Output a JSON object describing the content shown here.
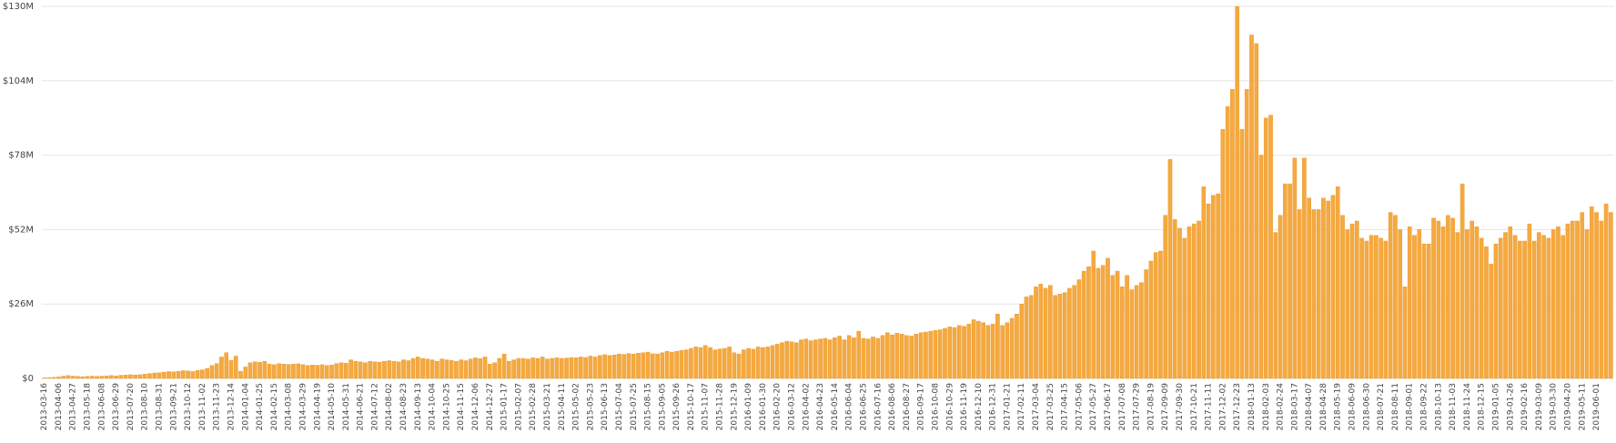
{
  "chart_data": {
    "type": "bar",
    "categories": [
      "2013-03-16",
      null,
      null,
      "2013-04-06",
      null,
      null,
      "2013-04-27",
      null,
      null,
      "2013-05-18",
      null,
      null,
      "2013-06-08",
      null,
      null,
      "2013-06-29",
      null,
      null,
      "2013-07-20",
      null,
      null,
      "2013-08-10",
      null,
      null,
      "2013-08-31",
      null,
      null,
      "2013-09-21",
      null,
      null,
      "2013-10-12",
      null,
      null,
      "2013-11-02",
      null,
      null,
      "2013-11-23",
      null,
      null,
      "2013-12-14",
      null,
      null,
      "2014-01-04",
      null,
      null,
      "2014-01-25",
      null,
      null,
      "2014-02-15",
      null,
      null,
      "2014-03-08",
      null,
      null,
      "2014-03-29",
      null,
      null,
      "2014-04-19",
      null,
      null,
      "2014-05-10",
      null,
      null,
      "2014-05-31",
      null,
      null,
      "2014-06-21",
      null,
      null,
      "2014-07-12",
      null,
      null,
      "2014-08-02",
      null,
      null,
      "2014-08-23",
      null,
      null,
      "2014-09-13",
      null,
      null,
      "2014-10-04",
      null,
      null,
      "2014-10-25",
      null,
      null,
      "2014-11-15",
      null,
      null,
      "2014-12-06",
      null,
      null,
      "2014-12-27",
      null,
      null,
      "2015-01-17",
      null,
      null,
      "2015-02-07",
      null,
      null,
      "2015-02-28",
      null,
      null,
      "2015-03-21",
      null,
      null,
      "2015-04-11",
      null,
      null,
      "2015-05-02",
      null,
      null,
      "2015-05-23",
      null,
      null,
      "2015-06-13",
      null,
      null,
      "2015-07-04",
      null,
      null,
      "2015-07-25",
      null,
      null,
      "2015-08-15",
      null,
      null,
      "2015-09-05",
      null,
      null,
      "2015-09-26",
      null,
      null,
      "2015-10-17",
      null,
      null,
      "2015-11-07",
      null,
      null,
      "2015-11-28",
      null,
      null,
      "2015-12-19",
      null,
      null,
      "2016-01-09",
      null,
      null,
      "2016-01-30",
      null,
      null,
      "2016-02-20",
      null,
      null,
      "2016-03-12",
      null,
      null,
      "2016-04-02",
      null,
      null,
      "2016-04-23",
      null,
      null,
      "2016-05-14",
      null,
      null,
      "2016-06-04",
      null,
      null,
      "2016-06-25",
      null,
      null,
      "2016-07-16",
      null,
      null,
      "2016-08-06",
      null,
      null,
      "2016-08-27",
      null,
      null,
      "2016-09-17",
      null,
      null,
      "2016-10-08",
      null,
      null,
      "2016-10-29",
      null,
      null,
      "2016-11-19",
      null,
      null,
      "2016-12-10",
      null,
      null,
      "2016-12-31",
      null,
      null,
      "2017-01-21",
      null,
      null,
      "2017-02-11",
      null,
      null,
      "2017-03-04",
      null,
      null,
      "2017-03-25",
      null,
      null,
      "2017-04-15",
      null,
      null,
      "2017-05-06",
      null,
      null,
      "2017-05-27",
      null,
      null,
      "2017-06-17",
      null,
      null,
      "2017-07-08",
      null,
      null,
      "2017-07-29",
      null,
      null,
      "2017-08-19",
      null,
      null,
      "2017-09-09",
      null,
      null,
      "2017-09-30",
      null,
      null,
      "2017-10-21",
      null,
      null,
      "2017-11-11",
      null,
      null,
      "2017-12-02",
      null,
      null,
      "2017-12-23",
      null,
      null,
      "2018-01-13",
      null,
      null,
      "2018-02-03",
      null,
      null,
      "2018-02-24",
      null,
      null,
      "2018-03-17",
      null,
      null,
      "2018-04-07",
      null,
      null,
      "2018-04-28",
      null,
      null,
      "2018-05-19",
      null,
      null,
      "2018-06-09",
      null,
      null,
      "2018-06-30",
      null,
      null,
      "2018-07-21",
      null,
      null,
      "2018-08-11",
      null,
      null,
      "2018-09-01",
      null,
      null,
      "2018-09-22",
      null,
      null,
      "2018-10-13",
      null,
      null,
      "2018-11-03",
      null,
      null,
      "2018-11-24",
      null,
      null,
      "2018-12-15",
      null,
      null,
      "2019-01-05",
      null,
      null,
      "2019-01-26",
      null,
      null,
      "2019-02-16",
      null,
      null,
      "2019-03-09",
      null,
      null,
      "2019-03-30",
      null,
      null,
      "2019-04-20",
      null,
      null,
      "2019-05-11",
      null,
      null,
      "2019-06-01",
      null,
      null,
      null
    ],
    "values": [
      0.2,
      0.3,
      0.4,
      0.5,
      0.8,
      1.0,
      0.8,
      0.7,
      0.6,
      0.7,
      0.8,
      0.7,
      0.8,
      0.9,
      1.0,
      0.9,
      1.1,
      1.2,
      1.3,
      1.2,
      1.3,
      1.5,
      1.7,
      1.9,
      2.0,
      2.2,
      2.4,
      2.3,
      2.5,
      2.7,
      2.6,
      2.4,
      2.8,
      3.0,
      3.5,
      4.5,
      5.2,
      7.5,
      9.0,
      6.3,
      7.8,
      2.5,
      4.0,
      5.5,
      5.8,
      5.6,
      6.0,
      5.0,
      4.8,
      5.2,
      5.0,
      4.9,
      5.0,
      5.1,
      4.8,
      4.5,
      4.7,
      4.6,
      4.8,
      4.5,
      4.7,
      5.2,
      5.5,
      5.3,
      6.5,
      6.0,
      5.8,
      5.5,
      6.0,
      5.8,
      5.7,
      6.0,
      6.2,
      6.0,
      5.8,
      6.5,
      6.2,
      7.0,
      7.5,
      7.0,
      6.8,
      6.5,
      6.0,
      6.8,
      6.5,
      6.3,
      6.0,
      6.5,
      6.2,
      6.8,
      7.2,
      6.9,
      7.5,
      5.0,
      5.5,
      7.0,
      8.5,
      6.0,
      6.5,
      7.0,
      7.0,
      6.8,
      7.2,
      7.0,
      7.5,
      6.8,
      7.0,
      7.2,
      7.0,
      7.1,
      7.3,
      7.2,
      7.5,
      7.3,
      7.8,
      7.5,
      8.0,
      8.3,
      8.0,
      8.2,
      8.5,
      8.4,
      8.7,
      8.5,
      8.8,
      9.0,
      9.2,
      8.6,
      8.5,
      9.0,
      9.5,
      9.2,
      9.5,
      9.8,
      10.0,
      10.5,
      11.0,
      10.8,
      11.5,
      10.8,
      10.0,
      10.3,
      10.5,
      11.0,
      9.0,
      8.5,
      10.0,
      10.5,
      10.2,
      11.0,
      10.8,
      11.0,
      11.5,
      12.0,
      12.5,
      13.0,
      12.8,
      12.5,
      13.5,
      13.8,
      13.2,
      13.5,
      13.8,
      14.0,
      13.5,
      14.2,
      14.8,
      13.5,
      15.0,
      14.2,
      16.5,
      14.0,
      13.8,
      14.5,
      14.0,
      15.0,
      16.0,
      15.2,
      15.8,
      15.5,
      15.0,
      14.8,
      15.5,
      16.0,
      16.2,
      16.5,
      16.8,
      17.0,
      17.5,
      18.0,
      17.8,
      18.5,
      18.2,
      19.0,
      20.5,
      20.0,
      19.5,
      18.5,
      19.0,
      22.5,
      18.5,
      19.5,
      21.0,
      22.5,
      26.0,
      28.5,
      29.0,
      32.0,
      33.0,
      31.5,
      32.5,
      29.0,
      29.5,
      30.0,
      31.5,
      32.5,
      34.5,
      37.5,
      39.0,
      44.5,
      38.5,
      39.5,
      42.0,
      36.0,
      37.5,
      32.0,
      36.0,
      31.0,
      32.5,
      33.5,
      38.0,
      41.0,
      44.0,
      44.5,
      57.0,
      76.5,
      55.5,
      52.5,
      49.0,
      53.0,
      54.0,
      55.0,
      67.0,
      61.0,
      64.0,
      64.5,
      87,
      95,
      101,
      130,
      87,
      101,
      120,
      117,
      78,
      91,
      92,
      51,
      57,
      68,
      68,
      77,
      59,
      77,
      63,
      59,
      59,
      63,
      62,
      64,
      67,
      57,
      52,
      54,
      55,
      49,
      48,
      50,
      50,
      49,
      48,
      58,
      57,
      52,
      32,
      53,
      50,
      52,
      47,
      47,
      56,
      55,
      53,
      57,
      56,
      51,
      68,
      52,
      55,
      53,
      49,
      46,
      40,
      47,
      49,
      51,
      53,
      50,
      48,
      48,
      54,
      48,
      51,
      50,
      49,
      52,
      53,
      50,
      54,
      55,
      55,
      58,
      52,
      60,
      58,
      55,
      61,
      58
    ],
    "color": "#f5a93f",
    "ylim": [
      0,
      130
    ],
    "yticks": [
      {
        "value": 0,
        "label": "$0"
      },
      {
        "value": 26,
        "label": "$26M"
      },
      {
        "value": 52,
        "label": "$52M"
      },
      {
        "value": 78,
        "label": "$78M"
      },
      {
        "value": 104,
        "label": "$104M"
      },
      {
        "value": 130,
        "label": "$130M"
      }
    ],
    "grid": true
  }
}
